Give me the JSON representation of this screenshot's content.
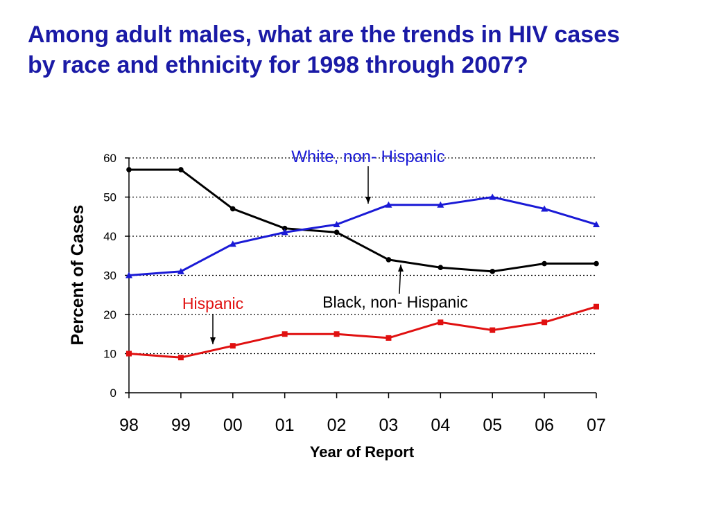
{
  "slide": {
    "title": "Among adult males, what are the trends in HIV cases by race and ethnicity for 1998 through 2007?"
  },
  "colors": {
    "title": "#1a1aa6",
    "black_series": "#000000",
    "white_series": "#1a1ad6",
    "hispanic_series": "#e01010"
  },
  "chart_data": {
    "type": "line",
    "title": "",
    "xlabel": "Year of Report",
    "ylabel": "Percent of Cases",
    "categories": [
      "98",
      "99",
      "00",
      "01",
      "02",
      "03",
      "04",
      "05",
      "06",
      "07"
    ],
    "ylim": [
      0,
      60
    ],
    "yticks": [
      0,
      10,
      20,
      30,
      40,
      50,
      60
    ],
    "grid": "horizontal dotted",
    "series": [
      {
        "name": "Black, non- Hispanic",
        "color": "#000000",
        "marker": "circle",
        "values": [
          57,
          57,
          47,
          42,
          41,
          34,
          32,
          31,
          33,
          33
        ]
      },
      {
        "name": "White, non- Hispanic",
        "color": "#1a1ad6",
        "marker": "triangle",
        "values": [
          30,
          31,
          38,
          41,
          43,
          48,
          48,
          50,
          47,
          43
        ]
      },
      {
        "name": "Hispanic",
        "color": "#e01010",
        "marker": "square",
        "values": [
          10,
          9,
          12,
          15,
          15,
          14,
          18,
          16,
          18,
          22
        ]
      }
    ],
    "annotations": [
      {
        "text": "White, non- Hispanic",
        "color": "#1a1ad6",
        "series": 1
      },
      {
        "text": "Black, non- Hispanic",
        "color": "#000000",
        "series": 0
      },
      {
        "text": "Hispanic",
        "color": "#e01010",
        "series": 2
      }
    ]
  }
}
